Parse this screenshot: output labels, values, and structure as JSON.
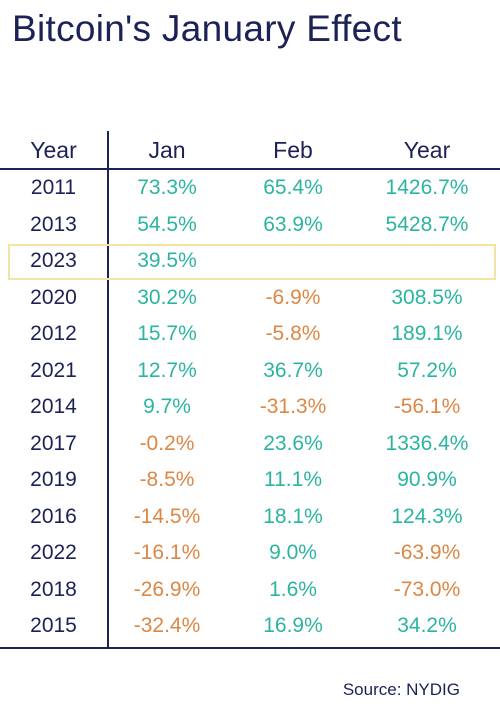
{
  "title": "Bitcoin's January Effect",
  "source": "Source: NYDIG",
  "colors": {
    "text": "#1c2256",
    "positive": "#2bb5a1",
    "negative": "#dd8745",
    "highlight": "#f3e3a4"
  },
  "highlighted_row": "2023",
  "chart_data": {
    "type": "table",
    "title": "Bitcoin's January Effect",
    "columns": [
      "Year",
      "Jan",
      "Feb",
      "Year"
    ],
    "rows": [
      {
        "year": "2011",
        "jan": "73.3%",
        "feb": "65.4%",
        "annual": "1426.7%"
      },
      {
        "year": "2013",
        "jan": "54.5%",
        "feb": "63.9%",
        "annual": "5428.7%"
      },
      {
        "year": "2023",
        "jan": "39.5%",
        "feb": "",
        "annual": ""
      },
      {
        "year": "2020",
        "jan": "30.2%",
        "feb": "-6.9%",
        "annual": "308.5%"
      },
      {
        "year": "2012",
        "jan": "15.7%",
        "feb": "-5.8%",
        "annual": "189.1%"
      },
      {
        "year": "2021",
        "jan": "12.7%",
        "feb": "36.7%",
        "annual": "57.2%"
      },
      {
        "year": "2014",
        "jan": "9.7%",
        "feb": "-31.3%",
        "annual": "-56.1%"
      },
      {
        "year": "2017",
        "jan": "-0.2%",
        "feb": "23.6%",
        "annual": "1336.4%"
      },
      {
        "year": "2019",
        "jan": "-8.5%",
        "feb": "11.1%",
        "annual": "90.9%"
      },
      {
        "year": "2016",
        "jan": "-14.5%",
        "feb": "18.1%",
        "annual": "124.3%"
      },
      {
        "year": "2022",
        "jan": "-16.1%",
        "feb": "9.0%",
        "annual": "-63.9%"
      },
      {
        "year": "2018",
        "jan": "-26.9%",
        "feb": "1.6%",
        "annual": "-73.0%"
      },
      {
        "year": "2015",
        "jan": "-32.4%",
        "feb": "16.9%",
        "annual": "34.2%"
      }
    ]
  }
}
